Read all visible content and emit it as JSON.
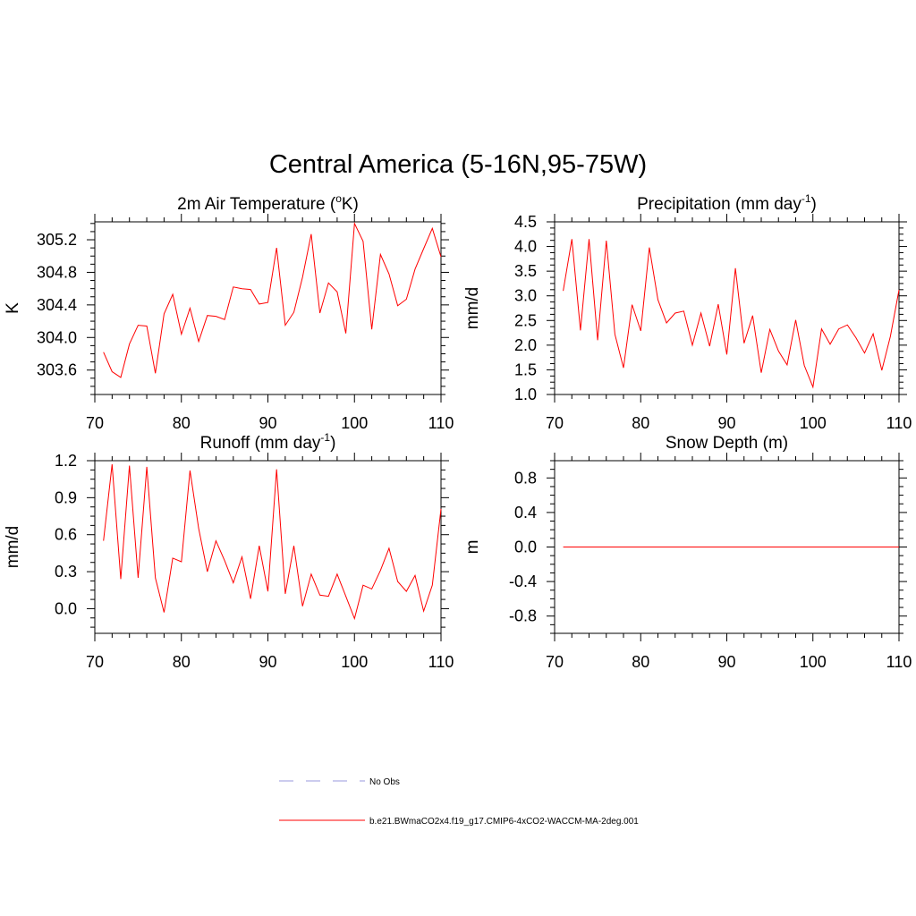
{
  "title": "Central America (5-16N,95-75W)",
  "colors": {
    "model_line": "#ff0000",
    "obs_line": "#9999dd",
    "axis": "#000000"
  },
  "legend": [
    {
      "label": "No Obs",
      "style": "dashed",
      "color": "#9999dd"
    },
    {
      "label": "b.e21.BWmaCO2x4.f19_g17.CMIP6-4xCO2-WACCM-MA-2deg.001",
      "style": "solid",
      "color": "#ff0000"
    }
  ],
  "chart_data": [
    {
      "type": "line",
      "title": "2m Air Temperature",
      "title_unit": "K",
      "title_sup": "o",
      "title_pre_sup": "2m Air Temperature (",
      "title_post": "K)",
      "ylabel": "K",
      "xlim": [
        70,
        110
      ],
      "ylim": [
        303.3,
        305.42
      ],
      "xticks": [
        70,
        80,
        90,
        100,
        110
      ],
      "yticks": [
        303.6,
        304.0,
        304.4,
        304.8,
        305.2
      ],
      "ytick_labels": [
        "303.6",
        "304.0",
        "304.4",
        "304.8",
        "305.2"
      ],
      "x": [
        71,
        72,
        73,
        74,
        75,
        76,
        77,
        78,
        79,
        80,
        81,
        82,
        83,
        84,
        85,
        86,
        87,
        88,
        89,
        90,
        91,
        92,
        93,
        94,
        95,
        96,
        97,
        98,
        99,
        100,
        101,
        102,
        103,
        104,
        105,
        106,
        107,
        108,
        109,
        110
      ],
      "series": [
        {
          "name": "b.e21.BWmaCO2x4.f19_g17.CMIP6-4xCO2-WACCM-MA-2deg.001",
          "values": [
            303.82,
            303.58,
            303.51,
            303.92,
            304.15,
            304.14,
            303.56,
            304.29,
            304.53,
            304.04,
            304.36,
            303.95,
            304.27,
            304.26,
            304.22,
            304.62,
            304.6,
            304.59,
            304.41,
            304.43,
            305.1,
            304.15,
            304.31,
            304.74,
            305.27,
            304.3,
            304.67,
            304.56,
            304.05,
            305.4,
            305.18,
            304.1,
            305.02,
            304.78,
            304.39,
            304.47,
            304.84,
            305.09,
            305.34,
            304.99
          ]
        }
      ]
    },
    {
      "type": "line",
      "title": "Precipitation",
      "title_pre_sup": "Precipitation (mm day",
      "title_sup": "-1",
      "title_post": ")",
      "ylabel": "mm/d",
      "xlim": [
        70,
        110
      ],
      "ylim": [
        1.0,
        4.5
      ],
      "xticks": [
        70,
        80,
        90,
        100,
        110
      ],
      "yticks": [
        1.0,
        1.5,
        2.0,
        2.5,
        3.0,
        3.5,
        4.0,
        4.5
      ],
      "ytick_labels": [
        "1.0",
        "1.5",
        "2.0",
        "2.5",
        "3.0",
        "3.5",
        "4.0",
        "4.5"
      ],
      "x": [
        71,
        72,
        73,
        74,
        75,
        76,
        77,
        78,
        79,
        80,
        81,
        82,
        83,
        84,
        85,
        86,
        87,
        88,
        89,
        90,
        91,
        92,
        93,
        94,
        95,
        96,
        97,
        98,
        99,
        100,
        101,
        102,
        103,
        104,
        105,
        106,
        107,
        108,
        109,
        110
      ],
      "series": [
        {
          "name": "b.e21.BWmaCO2x4.f19_g17.CMIP6-4xCO2-WACCM-MA-2deg.001",
          "values": [
            3.1,
            4.15,
            2.3,
            4.15,
            2.1,
            4.12,
            2.22,
            1.54,
            2.82,
            2.29,
            3.98,
            2.92,
            2.45,
            2.65,
            2.69,
            2.0,
            2.65,
            1.98,
            2.83,
            1.81,
            3.56,
            2.04,
            2.6,
            1.44,
            2.32,
            1.88,
            1.6,
            2.51,
            1.59,
            1.15,
            2.33,
            2.02,
            2.33,
            2.41,
            2.15,
            1.84,
            2.23,
            1.49,
            2.18,
            3.12
          ]
        }
      ]
    },
    {
      "type": "line",
      "title": "Runoff",
      "title_pre_sup": "Runoff (mm day",
      "title_sup": "-1",
      "title_post": ")",
      "ylabel": "mm/d",
      "xlim": [
        70,
        110
      ],
      "ylim": [
        -0.2,
        1.2
      ],
      "xticks": [
        70,
        80,
        90,
        100,
        110
      ],
      "yticks": [
        0.0,
        0.3,
        0.6,
        0.9,
        1.2
      ],
      "ytick_labels": [
        "0.0",
        "0.3",
        "0.6",
        "0.9",
        "1.2"
      ],
      "x": [
        71,
        72,
        73,
        74,
        75,
        76,
        77,
        78,
        79,
        80,
        81,
        82,
        83,
        84,
        85,
        86,
        87,
        88,
        89,
        90,
        91,
        92,
        93,
        94,
        95,
        96,
        97,
        98,
        99,
        100,
        101,
        102,
        103,
        104,
        105,
        106,
        107,
        108,
        109,
        110
      ],
      "series": [
        {
          "name": "b.e21.BWmaCO2x4.f19_g17.CMIP6-4xCO2-WACCM-MA-2deg.001",
          "values": [
            0.55,
            1.17,
            0.24,
            1.16,
            0.25,
            1.15,
            0.25,
            -0.03,
            0.41,
            0.38,
            1.12,
            0.65,
            0.3,
            0.55,
            0.39,
            0.21,
            0.42,
            0.08,
            0.51,
            0.14,
            1.13,
            0.12,
            0.51,
            0.02,
            0.28,
            0.11,
            0.1,
            0.28,
            0.1,
            -0.08,
            0.19,
            0.16,
            0.31,
            0.49,
            0.22,
            0.14,
            0.27,
            -0.02,
            0.19,
            0.81
          ]
        }
      ]
    },
    {
      "type": "line",
      "title": "Snow Depth (m)",
      "title_pre_sup": "Snow Depth (m)",
      "title_sup": "",
      "title_post": "",
      "ylabel": "m",
      "xlim": [
        70,
        110
      ],
      "ylim": [
        -1.0,
        1.0
      ],
      "xticks": [
        70,
        80,
        90,
        100,
        110
      ],
      "yticks": [
        -0.8,
        -0.4,
        0.0,
        0.4,
        0.8
      ],
      "ytick_labels": [
        "-0.8",
        "-0.4",
        "0.0",
        "0.4",
        "0.8"
      ],
      "x": [
        71,
        110
      ],
      "series": [
        {
          "name": "b.e21.BWmaCO2x4.f19_g17.CMIP6-4xCO2-WACCM-MA-2deg.001",
          "values": [
            0.0,
            0.0
          ]
        }
      ]
    }
  ]
}
